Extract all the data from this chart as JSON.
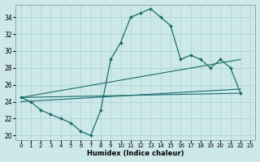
{
  "xlabel": "Humidex (Indice chaleur)",
  "background_color": "#cde8e8",
  "grid_color": "#b0d4d4",
  "line_color": "#1a6b6b",
  "xlim": [
    -0.5,
    23.5
  ],
  "ylim": [
    19.5,
    35.5
  ],
  "xticks": [
    0,
    1,
    2,
    3,
    4,
    5,
    6,
    7,
    8,
    9,
    10,
    11,
    12,
    13,
    14,
    15,
    16,
    17,
    18,
    19,
    20,
    21,
    22,
    23
  ],
  "yticks": [
    20,
    22,
    24,
    26,
    28,
    30,
    32,
    34
  ],
  "main_x": [
    0,
    1,
    2,
    3,
    4,
    5,
    6,
    7,
    8,
    9,
    10,
    11,
    12,
    13,
    14,
    15,
    16,
    17,
    18,
    19,
    20,
    21,
    22
  ],
  "main_curve": [
    24.5,
    24.0,
    23.0,
    22.5,
    22.0,
    21.5,
    20.5,
    20.0,
    23.0,
    29.0,
    31.0,
    34.0,
    34.5,
    35.0,
    34.0,
    33.0,
    29.0,
    29.5,
    29.0,
    28.0,
    29.0,
    28.0,
    25.0
  ],
  "line1_x": [
    0,
    22
  ],
  "line1_y": [
    24.5,
    25.0
  ],
  "line2_x": [
    0,
    22
  ],
  "line2_y": [
    24.5,
    29.0
  ],
  "line3_x": [
    0,
    22
  ],
  "line3_y": [
    24.0,
    25.5
  ]
}
